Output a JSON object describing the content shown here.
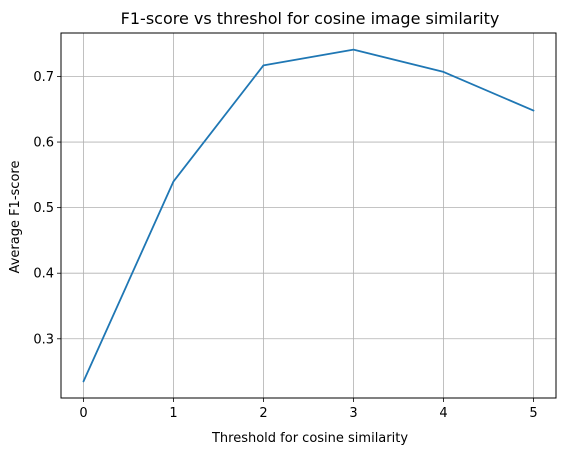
{
  "chart_data": {
    "type": "line",
    "title": "F1-score vs threshol for cosine image similarity",
    "xlabel": "Threshold for cosine similarity",
    "ylabel": "Average F1-score",
    "x": [
      0,
      1,
      2,
      3,
      4,
      5
    ],
    "series": [
      {
        "values": [
          0.235,
          0.54,
          0.717,
          0.741,
          0.707,
          0.648
        ],
        "color": "#1f77b4"
      }
    ],
    "x_ticks": [
      0,
      1,
      2,
      3,
      4,
      5
    ],
    "y_ticks": [
      0.3,
      0.4,
      0.5,
      0.6,
      0.7
    ],
    "xlim": [
      -0.25,
      5.25
    ],
    "ylim": [
      0.2097,
      0.7663
    ],
    "grid": true,
    "legend": "none"
  }
}
